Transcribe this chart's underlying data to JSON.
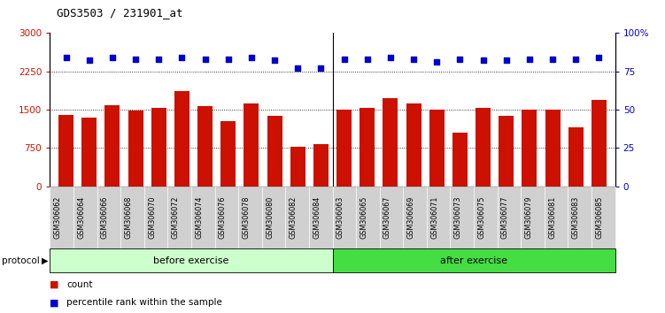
{
  "title": "GDS3503 / 231901_at",
  "categories": [
    "GSM306062",
    "GSM306064",
    "GSM306066",
    "GSM306068",
    "GSM306070",
    "GSM306072",
    "GSM306074",
    "GSM306076",
    "GSM306078",
    "GSM306080",
    "GSM306082",
    "GSM306084",
    "GSM306063",
    "GSM306065",
    "GSM306067",
    "GSM306069",
    "GSM306071",
    "GSM306073",
    "GSM306075",
    "GSM306077",
    "GSM306079",
    "GSM306081",
    "GSM306083",
    "GSM306085"
  ],
  "counts": [
    1390,
    1340,
    1580,
    1480,
    1530,
    1870,
    1570,
    1280,
    1620,
    1380,
    780,
    820,
    1490,
    1530,
    1730,
    1620,
    1490,
    1050,
    1530,
    1380,
    1490,
    1490,
    1160,
    1680
  ],
  "percentile_ranks": [
    84,
    82,
    84,
    83,
    83,
    84,
    83,
    83,
    84,
    82,
    77,
    77,
    83,
    83,
    84,
    83,
    81,
    83,
    82,
    82,
    83,
    83,
    83,
    84
  ],
  "before_count": 12,
  "after_count": 12,
  "bar_color": "#cc1100",
  "dot_color": "#0000cc",
  "left_ylim": [
    0,
    3000
  ],
  "right_ylim": [
    0,
    100
  ],
  "left_yticks": [
    0,
    750,
    1500,
    2250,
    3000
  ],
  "right_yticks": [
    0,
    25,
    50,
    75,
    100
  ],
  "right_yticklabels": [
    "0",
    "25",
    "50",
    "75",
    "100%"
  ],
  "before_label": "before exercise",
  "after_label": "after exercise",
  "before_bg": "#ccffcc",
  "after_bg": "#44dd44",
  "protocol_label": "protocol",
  "legend_count_label": "count",
  "legend_pct_label": "percentile rank within the sample",
  "grid_color": "black",
  "background_color": "white",
  "xtick_bg": "#d0d0d0"
}
